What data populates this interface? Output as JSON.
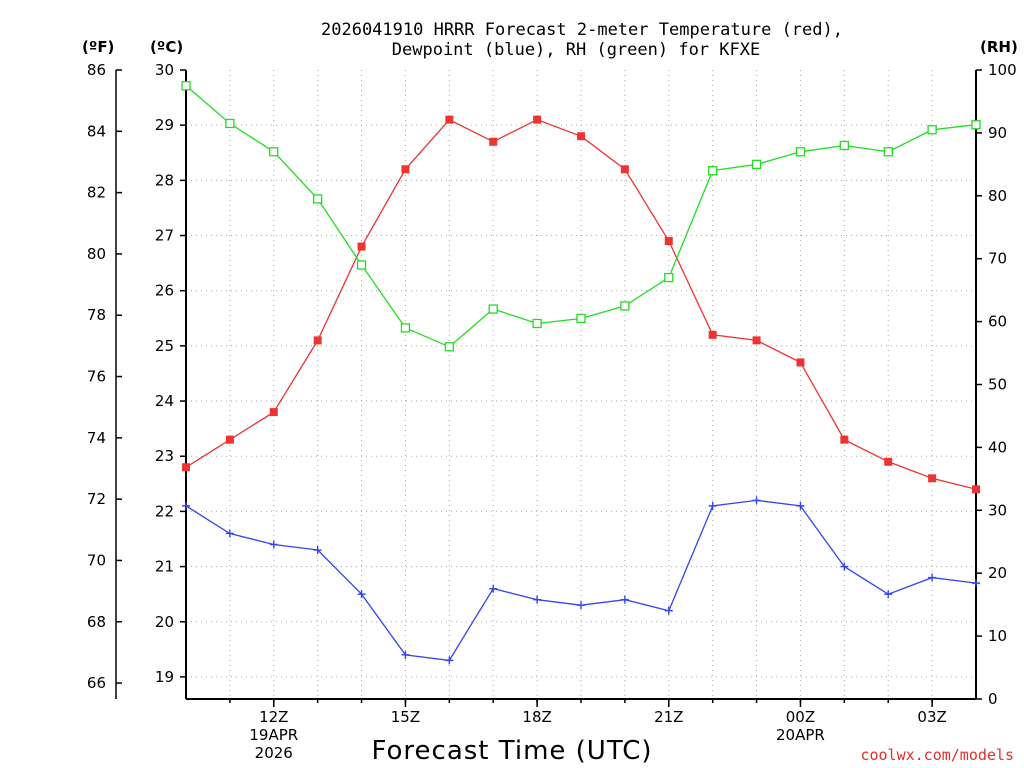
{
  "chart_data": {
    "type": "line",
    "title_line1": "2026041910 HRRR Forecast 2-meter Temperature (red),",
    "title_line2": "Dewpoint (blue), RH (green) for KFXE",
    "xlabel": "Forecast Time (UTC)",
    "credit": "coolwx.com/models",
    "units": {
      "fahrenheit": "(ºF)",
      "celsius": "(ºC)",
      "rh": "(RH)"
    },
    "x_range_hours": [
      10,
      28
    ],
    "x_ticks": [
      {
        "hour": 12,
        "label": "12Z",
        "sub1": "19APR",
        "sub2": "2026"
      },
      {
        "hour": 15,
        "label": "15Z",
        "sub1": "",
        "sub2": ""
      },
      {
        "hour": 18,
        "label": "18Z",
        "sub1": "",
        "sub2": ""
      },
      {
        "hour": 21,
        "label": "21Z",
        "sub1": "",
        "sub2": ""
      },
      {
        "hour": 24,
        "label": "00Z",
        "sub1": "20APR",
        "sub2": ""
      },
      {
        "hour": 27,
        "label": "03Z",
        "sub1": "",
        "sub2": ""
      }
    ],
    "celsius_range": [
      18.6,
      30
    ],
    "celsius_ticks": [
      "19",
      "20",
      "21",
      "22",
      "23",
      "24",
      "25",
      "26",
      "27",
      "28",
      "29",
      "30"
    ],
    "fahrenheit_ticks": [
      "66",
      "68",
      "70",
      "72",
      "74",
      "76",
      "78",
      "80",
      "82",
      "84",
      "86"
    ],
    "rh_range": [
      0,
      100
    ],
    "rh_ticks": [
      "0",
      "10",
      "20",
      "30",
      "40",
      "50",
      "60",
      "70",
      "80",
      "90",
      "100"
    ],
    "hours": [
      10,
      11,
      12,
      13,
      14,
      15,
      16,
      17,
      18,
      19,
      20,
      21,
      22,
      23,
      24,
      25,
      26,
      27,
      28
    ],
    "series": [
      {
        "name": "Temperature",
        "units": "C",
        "color": "#ee3333",
        "marker": "filled-square",
        "values": [
          22.8,
          23.3,
          23.8,
          25.1,
          26.8,
          28.2,
          29.1,
          28.7,
          29.1,
          28.8,
          28.2,
          26.9,
          25.2,
          25.1,
          24.7,
          23.3,
          22.9,
          22.6,
          22.4
        ]
      },
      {
        "name": "Dewpoint",
        "units": "C",
        "color": "#3344ee",
        "marker": "plus",
        "values": [
          22.1,
          21.6,
          21.4,
          21.3,
          20.5,
          19.4,
          19.3,
          20.6,
          20.4,
          20.3,
          20.4,
          20.2,
          22.1,
          22.2,
          22.1,
          21.0,
          20.5,
          20.8,
          20.7
        ]
      },
      {
        "name": "RH",
        "units": "%",
        "color": "#22dd22",
        "marker": "open-square",
        "values": [
          97.5,
          91.5,
          87,
          79.5,
          69,
          59,
          56,
          62,
          59.7,
          60.5,
          62.5,
          67,
          84,
          85,
          87,
          88,
          87,
          90.5,
          91.3
        ]
      }
    ]
  }
}
